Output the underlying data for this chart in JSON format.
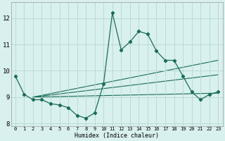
{
  "title": "",
  "xlabel": "Humidex (Indice chaleur)",
  "background_color": "#d8f0ee",
  "grid_color": "#b8d8d4",
  "line_color": "#1a6b5a",
  "xlim": [
    -0.5,
    23.5
  ],
  "ylim": [
    7.9,
    12.6
  ],
  "yticks": [
    8,
    9,
    10,
    11,
    12
  ],
  "xticks": [
    0,
    1,
    2,
    3,
    4,
    5,
    6,
    7,
    8,
    9,
    10,
    11,
    12,
    13,
    14,
    15,
    16,
    17,
    18,
    19,
    20,
    21,
    22,
    23
  ],
  "main_x": [
    0,
    1,
    2,
    3,
    4,
    5,
    6,
    7,
    8,
    9,
    10,
    11,
    12,
    13,
    14,
    15,
    16,
    17,
    18,
    19,
    20,
    21,
    22,
    23
  ],
  "main_y": [
    9.8,
    9.1,
    8.9,
    8.9,
    8.75,
    8.7,
    8.6,
    8.3,
    8.2,
    8.4,
    9.5,
    12.2,
    10.8,
    11.1,
    11.5,
    11.4,
    10.75,
    10.4,
    10.4,
    9.8,
    9.2,
    8.9,
    9.1,
    9.2
  ],
  "trend_lines": [
    {
      "x": [
        2,
        23
      ],
      "y": [
        9.0,
        9.15
      ]
    },
    {
      "x": [
        2,
        23
      ],
      "y": [
        9.0,
        9.85
      ]
    },
    {
      "x": [
        2,
        23
      ],
      "y": [
        9.0,
        10.4
      ]
    }
  ]
}
